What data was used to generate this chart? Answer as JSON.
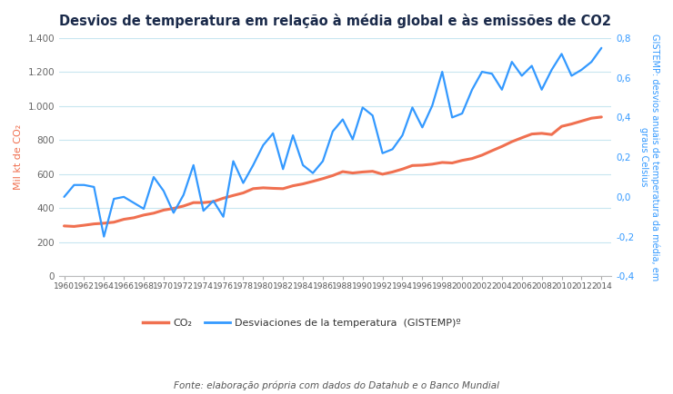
{
  "title": "Desvios de temperatura em relação à média global e às emissões de CO2",
  "footnote": "Fonte: elaboração própria com dados do Datahub e o Banco Mundial",
  "years": [
    1960,
    1961,
    1962,
    1963,
    1964,
    1965,
    1966,
    1967,
    1968,
    1969,
    1970,
    1971,
    1972,
    1973,
    1974,
    1975,
    1976,
    1977,
    1978,
    1979,
    1980,
    1981,
    1982,
    1983,
    1984,
    1985,
    1986,
    1987,
    1988,
    1989,
    1990,
    1991,
    1992,
    1993,
    1994,
    1995,
    1996,
    1997,
    1998,
    1999,
    2000,
    2001,
    2002,
    2003,
    2004,
    2005,
    2006,
    2007,
    2008,
    2009,
    2010,
    2011,
    2012,
    2013,
    2014
  ],
  "co2": [
    296,
    293,
    300,
    308,
    312,
    318,
    335,
    344,
    360,
    371,
    389,
    399,
    413,
    433,
    433,
    439,
    459,
    475,
    490,
    515,
    520,
    517,
    515,
    532,
    543,
    558,
    574,
    592,
    615,
    607,
    613,
    617,
    600,
    613,
    630,
    651,
    653,
    659,
    669,
    666,
    681,
    692,
    712,
    738,
    763,
    791,
    814,
    836,
    840,
    833,
    881,
    895,
    912,
    929,
    936
  ],
  "temp": [
    0.0,
    0.06,
    0.06,
    0.05,
    -0.2,
    -0.01,
    0.0,
    -0.03,
    -0.06,
    0.1,
    0.03,
    -0.08,
    0.01,
    0.16,
    -0.07,
    -0.02,
    -0.1,
    0.18,
    0.07,
    0.16,
    0.26,
    0.32,
    0.14,
    0.31,
    0.16,
    0.12,
    0.18,
    0.33,
    0.39,
    0.29,
    0.45,
    0.41,
    0.22,
    0.24,
    0.31,
    0.45,
    0.35,
    0.46,
    0.63,
    0.4,
    0.42,
    0.54,
    0.63,
    0.62,
    0.54,
    0.68,
    0.61,
    0.66,
    0.54,
    0.64,
    0.72,
    0.61,
    0.64,
    0.68,
    0.75
  ],
  "co2_color": "#f07050",
  "temp_color": "#3399ff",
  "ylabel_left": "Mil kt de CO₂",
  "ylabel_right": "GISTEMP: desvios anuais de temperatura da média, em\ngraus Celsius",
  "ylim_left": [
    0,
    1400
  ],
  "ylim_right": [
    -0.4,
    0.8
  ],
  "yticks_left": [
    0,
    200,
    400,
    600,
    800,
    1000,
    1200,
    1400
  ],
  "yticks_right": [
    -0.4,
    -0.2,
    0.0,
    0.2,
    0.4,
    0.6,
    0.8
  ],
  "legend_co2": "CO₂",
  "legend_temp": "Desviaciones de la temperatura  (GISTEMP)º",
  "background_color": "#ffffff",
  "grid_color": "#c8e6f0",
  "title_color": "#1a2a4a",
  "left_label_color": "#f07050",
  "right_label_color": "#3399ff"
}
